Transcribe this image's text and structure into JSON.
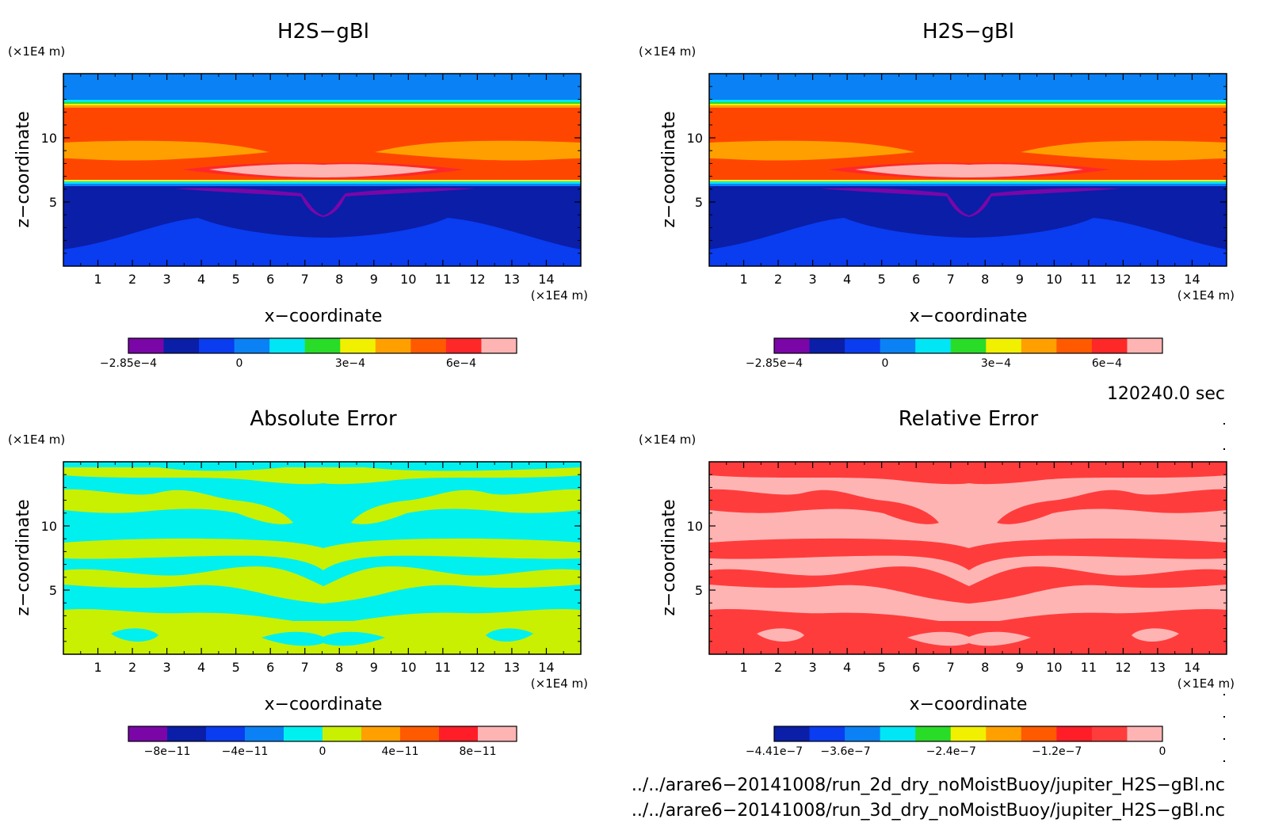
{
  "palettes": {
    "h2s": [
      "#7a06a8",
      "#0a1ea8",
      "#0a3cf0",
      "#0a82f5",
      "#00e6f5",
      "#28dc28",
      "#f0f000",
      "#ffa000",
      "#ff5a00",
      "#ff2828",
      "#ffb4b4"
    ],
    "abs": [
      "#7a06a8",
      "#0a1ea8",
      "#0a3cf0",
      "#0a82f5",
      "#00f0f0",
      "#c8f000",
      "#ffa000",
      "#ff5a00",
      "#ff1e28",
      "#ffb4b4"
    ],
    "rel": [
      "#0a1ea8",
      "#0a3cf0",
      "#0a82f5",
      "#00e6f5",
      "#28dc28",
      "#f0f000",
      "#ffa000",
      "#ff5a00",
      "#ff1e28",
      "#ff3c3c",
      "#ffb4b4"
    ]
  },
  "panels": [
    {
      "title": "H2S−gBl",
      "yunit": "(×1E4 m)",
      "ylabel": "z−coordinate",
      "xlabel": "x−coordinate",
      "xunit": "(×1E4 m)",
      "xticks": [
        "1",
        "2",
        "3",
        "4",
        "5",
        "6",
        "7",
        "8",
        "9",
        "10",
        "11",
        "12",
        "13",
        "14"
      ],
      "yticks": [
        "5",
        "10"
      ],
      "colorbar_labels": [
        {
          "text": "−2.85e−4",
          "at": 0.0
        },
        {
          "text": "0",
          "at": 0.2857
        },
        {
          "text": "3e−4",
          "at": 0.5714
        },
        {
          "text": "6e−4",
          "at": 0.8571
        }
      ]
    },
    {
      "title": "H2S−gBl",
      "yunit": "(×1E4 m)",
      "ylabel": "z−coordinate",
      "xlabel": "x−coordinate",
      "xunit": "(×1E4 m)",
      "xticks": [
        "1",
        "2",
        "3",
        "4",
        "5",
        "6",
        "7",
        "8",
        "9",
        "10",
        "11",
        "12",
        "13",
        "14"
      ],
      "yticks": [
        "5",
        "10"
      ],
      "colorbar_labels": [
        {
          "text": "−2.85e−4",
          "at": 0.0
        },
        {
          "text": "0",
          "at": 0.2857
        },
        {
          "text": "3e−4",
          "at": 0.5714
        },
        {
          "text": "6e−4",
          "at": 0.8571
        }
      ]
    },
    {
      "title": "Absolute Error",
      "yunit": "(×1E4 m)",
      "ylabel": "z−coordinate",
      "xlabel": "x−coordinate",
      "xunit": "(×1E4 m)",
      "xticks": [
        "1",
        "2",
        "3",
        "4",
        "5",
        "6",
        "7",
        "8",
        "9",
        "10",
        "11",
        "12",
        "13",
        "14"
      ],
      "yticks": [
        "5",
        "10"
      ],
      "colorbar_labels": [
        {
          "text": "−8e−11",
          "at": 0.1
        },
        {
          "text": "−4e−11",
          "at": 0.3
        },
        {
          "text": "0",
          "at": 0.5
        },
        {
          "text": "4e−11",
          "at": 0.7
        },
        {
          "text": "8e−11",
          "at": 0.9
        }
      ]
    },
    {
      "title": "Relative Error",
      "yunit": "(×1E4 m)",
      "ylabel": "z−coordinate",
      "xlabel": "x−coordinate",
      "xunit": "(×1E4 m)",
      "xticks": [
        "1",
        "2",
        "3",
        "4",
        "5",
        "6",
        "7",
        "8",
        "9",
        "10",
        "11",
        "12",
        "13",
        "14"
      ],
      "yticks": [
        "5",
        "10"
      ],
      "colorbar_labels": [
        {
          "text": "−4.41e−7",
          "at": 0.0
        },
        {
          "text": "−3.6e−7",
          "at": 0.1837
        },
        {
          "text": "−2.4e−7",
          "at": 0.4558
        },
        {
          "text": "−1.2e−7",
          "at": 0.7279
        },
        {
          "text": "0",
          "at": 1.0
        }
      ]
    }
  ],
  "info": {
    "time": "120240.0 sec",
    "file1": "../../arare6−20141008/run_2d_dry_noMoistBuoy/jupiter_H2S−gBl.nc",
    "file2": "../../arare6−20141008/run_3d_dry_noMoistBuoy/jupiter_H2S−gBl.nc"
  },
  "chart_data": [
    {
      "type": "heatmap",
      "title": "H2S−gBl",
      "xlabel": "x−coordinate",
      "ylabel": "z−coordinate",
      "x_unit": "×1E4 m",
      "y_unit": "×1E4 m",
      "xlim": [
        0,
        15
      ],
      "ylim": [
        0,
        15
      ],
      "colorbar_ticks": [
        "−2.85e−4",
        "0",
        "3e−4",
        "6e−4"
      ],
      "description_values": "high values (~6e−4 to 7e−4) between z≈6.5 and z≈12.5; low values (≈2e−5 to −2.85e−4) below z≈6; near 0 above z≈13"
    },
    {
      "type": "heatmap",
      "title": "H2S−gBl",
      "xlabel": "x−coordinate",
      "ylabel": "z−coordinate",
      "x_unit": "×1E4 m",
      "y_unit": "×1E4 m",
      "xlim": [
        0,
        15
      ],
      "ylim": [
        0,
        15
      ],
      "colorbar_ticks": [
        "−2.85e−4",
        "0",
        "3e−4",
        "6e−4"
      ]
    },
    {
      "type": "heatmap",
      "title": "Absolute Error",
      "xlabel": "x−coordinate",
      "ylabel": "z−coordinate",
      "x_unit": "×1E4 m",
      "y_unit": "×1E4 m",
      "xlim": [
        0,
        15
      ],
      "ylim": [
        0,
        15
      ],
      "colorbar_ticks": [
        "−8e−11",
        "−4e−11",
        "0",
        "4e−11",
        "8e−11"
      ]
    },
    {
      "type": "heatmap",
      "title": "Relative Error",
      "xlabel": "x−coordinate",
      "ylabel": "z−coordinate",
      "x_unit": "×1E4 m",
      "y_unit": "×1E4 m",
      "xlim": [
        0,
        15
      ],
      "ylim": [
        0,
        15
      ],
      "colorbar_ticks": [
        "−4.41e−7",
        "−3.6e−7",
        "−2.4e−7",
        "−1.2e−7",
        "0"
      ]
    }
  ]
}
